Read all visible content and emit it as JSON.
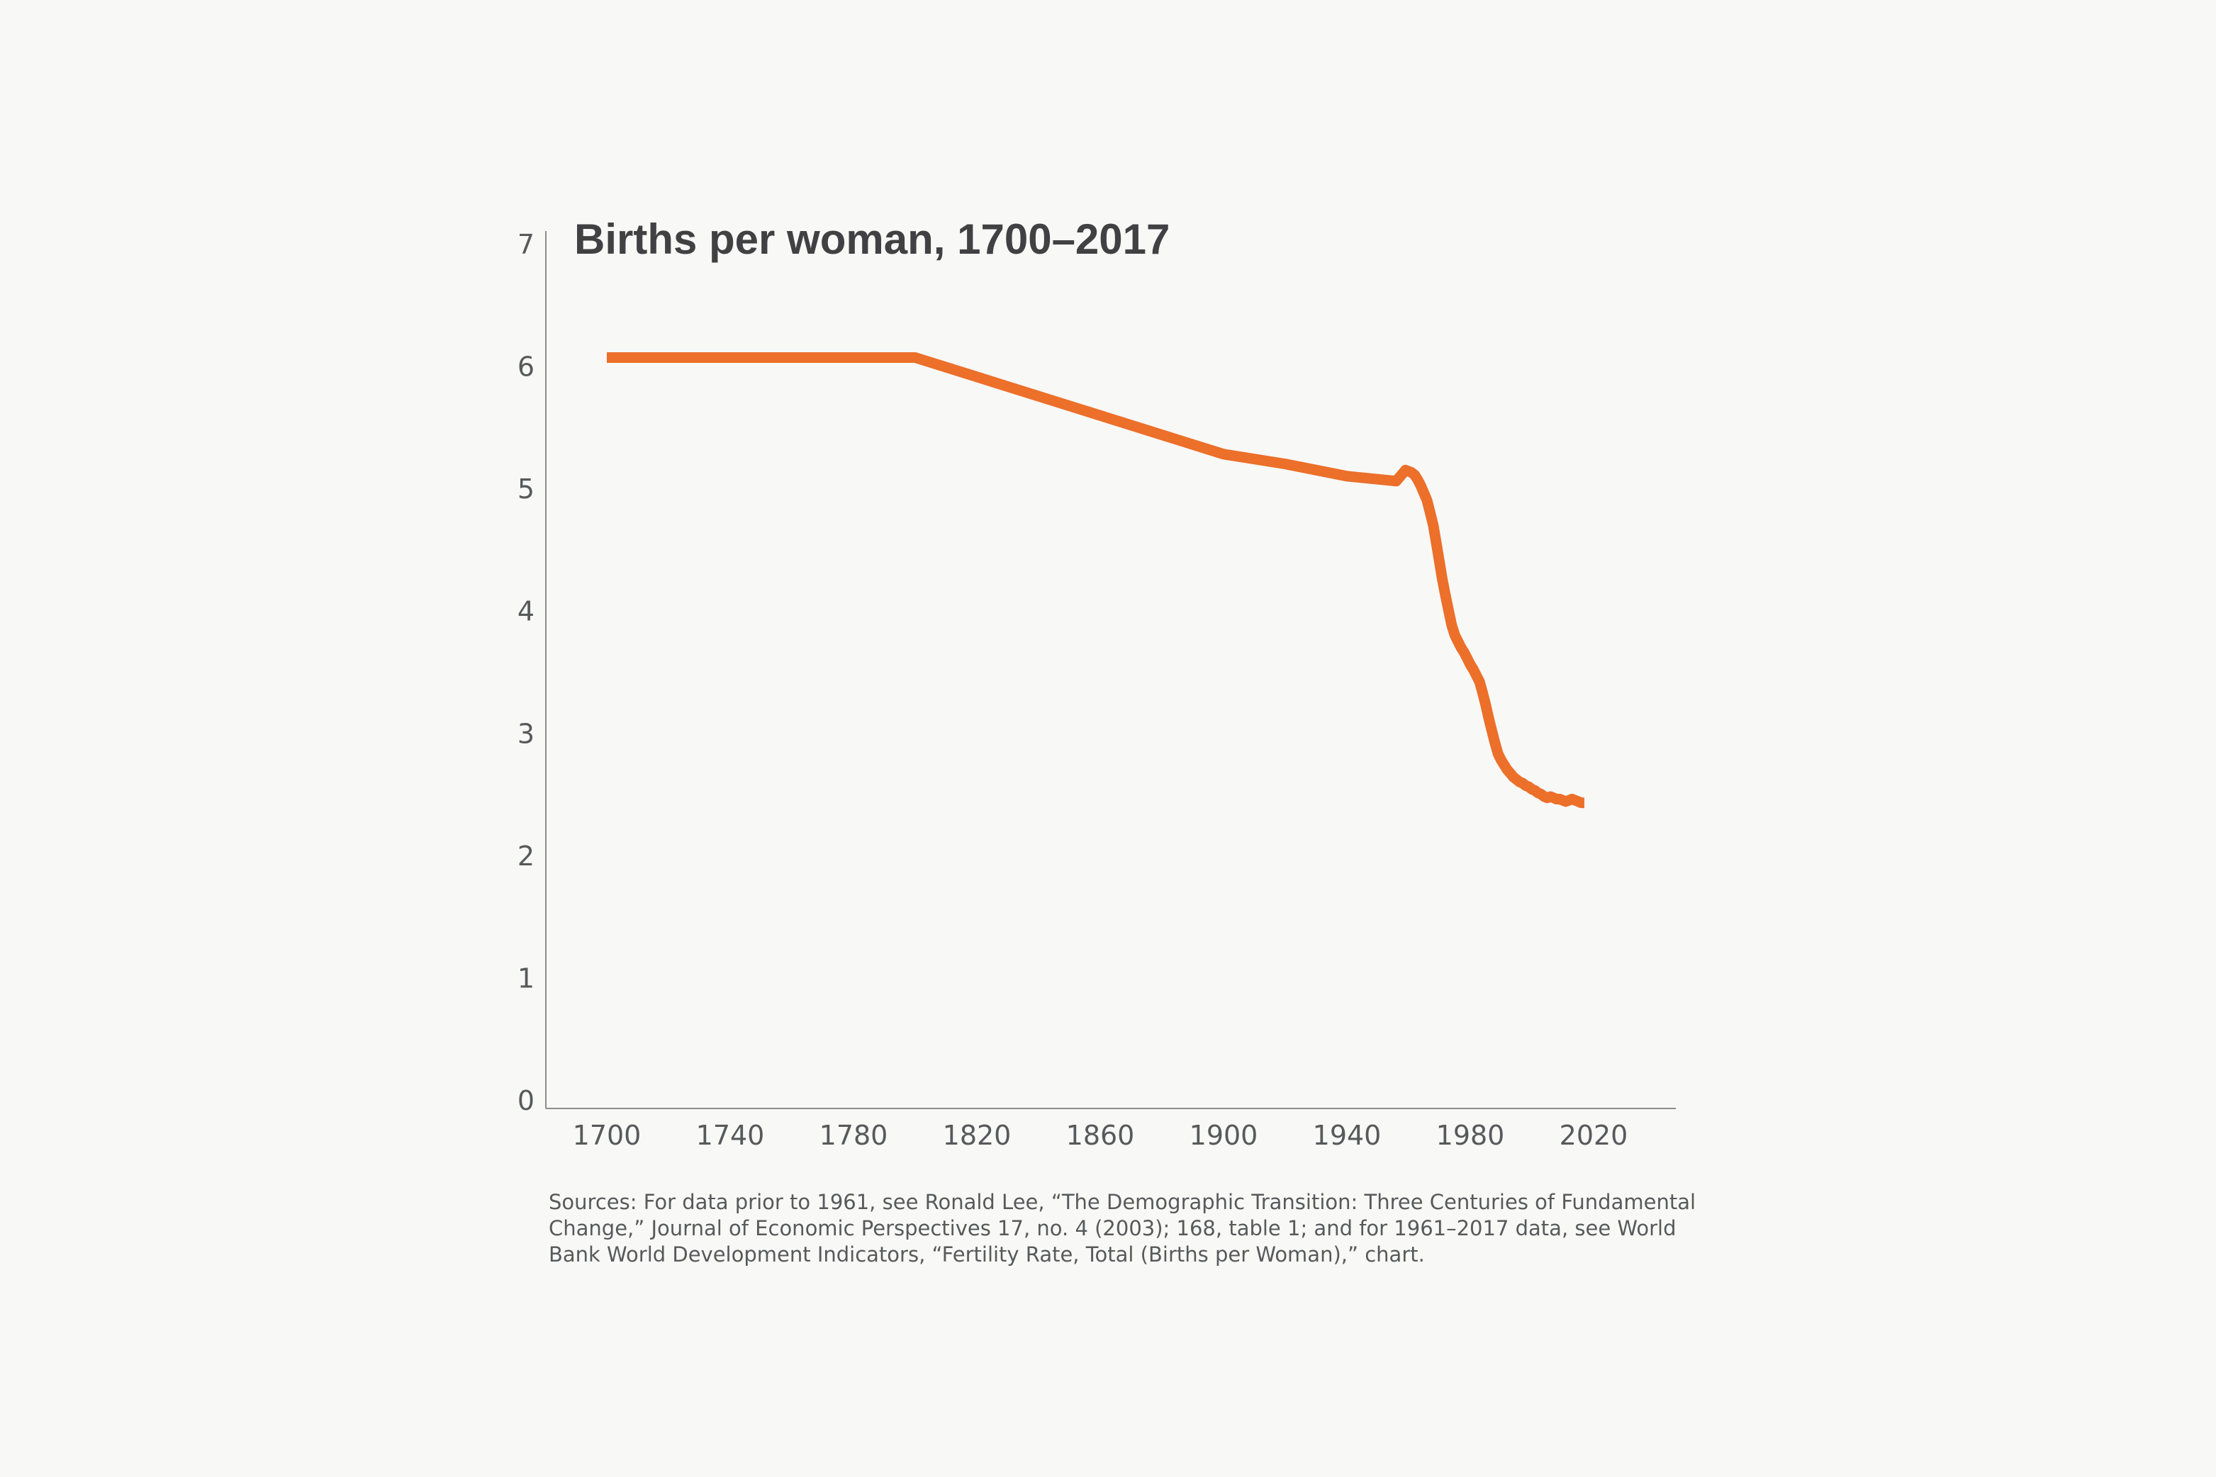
{
  "chart_data": {
    "type": "line",
    "title": "Births per woman, 1700–2017",
    "xlabel": "",
    "ylabel": "",
    "xlim": [
      1680,
      2032
    ],
    "ylim": [
      0,
      7
    ],
    "x_ticks": [
      1700,
      1740,
      1780,
      1820,
      1860,
      1900,
      1940,
      1980,
      2020
    ],
    "y_ticks": [
      0,
      1,
      2,
      3,
      4,
      5,
      6,
      7
    ],
    "grid": false,
    "legend": "none",
    "series": [
      {
        "color": "#ec6f2a",
        "points": [
          [
            1700,
            6.07
          ],
          [
            1800,
            6.07
          ],
          [
            1900,
            5.28
          ],
          [
            1920,
            5.2
          ],
          [
            1940,
            5.1
          ],
          [
            1956,
            5.06
          ],
          [
            1959,
            5.15
          ],
          [
            1961,
            5.13
          ],
          [
            1962,
            5.11
          ],
          [
            1963,
            5.07
          ],
          [
            1964,
            5.02
          ],
          [
            1965,
            4.96
          ],
          [
            1966,
            4.9
          ],
          [
            1967,
            4.8
          ],
          [
            1968,
            4.7
          ],
          [
            1969,
            4.55
          ],
          [
            1970,
            4.4
          ],
          [
            1971,
            4.25
          ],
          [
            1972,
            4.12
          ],
          [
            1973,
            4.0
          ],
          [
            1974,
            3.88
          ],
          [
            1975,
            3.8
          ],
          [
            1976,
            3.75
          ],
          [
            1977,
            3.7
          ],
          [
            1978,
            3.66
          ],
          [
            1979,
            3.61
          ],
          [
            1980,
            3.56
          ],
          [
            1981,
            3.52
          ],
          [
            1982,
            3.47
          ],
          [
            1983,
            3.42
          ],
          [
            1984,
            3.33
          ],
          [
            1985,
            3.23
          ],
          [
            1986,
            3.12
          ],
          [
            1987,
            3.02
          ],
          [
            1988,
            2.92
          ],
          [
            1989,
            2.83
          ],
          [
            1990,
            2.78
          ],
          [
            1991,
            2.74
          ],
          [
            1992,
            2.7
          ],
          [
            1993,
            2.67
          ],
          [
            1994,
            2.64
          ],
          [
            1995,
            2.62
          ],
          [
            1996,
            2.6
          ],
          [
            1997,
            2.59
          ],
          [
            1998,
            2.57
          ],
          [
            1999,
            2.56
          ],
          [
            2000,
            2.54
          ],
          [
            2001,
            2.53
          ],
          [
            2002,
            2.51
          ],
          [
            2003,
            2.5
          ],
          [
            2004,
            2.48
          ],
          [
            2005,
            2.47
          ],
          [
            2006,
            2.48
          ],
          [
            2007,
            2.47
          ],
          [
            2008,
            2.46
          ],
          [
            2009,
            2.46
          ],
          [
            2010,
            2.45
          ],
          [
            2011,
            2.44
          ],
          [
            2012,
            2.45
          ],
          [
            2013,
            2.46
          ],
          [
            2014,
            2.45
          ],
          [
            2015,
            2.44
          ],
          [
            2016,
            2.43
          ],
          [
            2017,
            2.43
          ]
        ]
      }
    ]
  },
  "source_note": "Sources: For data prior to 1961, see Ronald Lee, “The Demographic Transition: Three Centuries of Fundamental Change,” Journal of Economic Perspectives 17, no. 4 (2003); 168, table 1; and for 1961–2017 data, see World Bank World Development Indicators, “Fertility Rate, Total (Births per Woman),” chart."
}
